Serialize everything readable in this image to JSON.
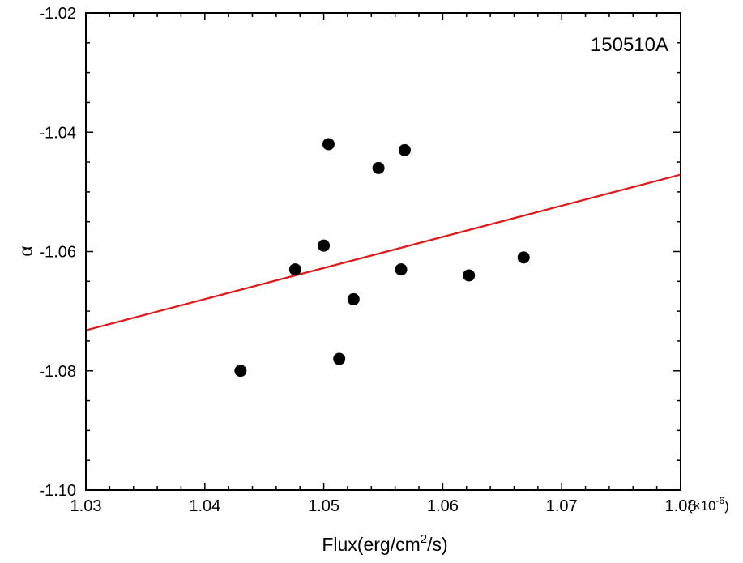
{
  "chart_data": {
    "type": "scatter",
    "title": "",
    "annotation": "150510A",
    "xlabel_main": "Flux(erg/cm",
    "xlabel_sup": "2",
    "xlabel_tail": "/s)",
    "ylabel": "α",
    "x_multiplier_prefix": "(×10",
    "x_multiplier_exp": "-6",
    "x_multiplier_suffix": ")",
    "xlim": [
      1.03,
      1.08
    ],
    "ylim": [
      -1.1,
      -1.02
    ],
    "x_ticks": [
      1.03,
      1.04,
      1.05,
      1.06,
      1.07,
      1.08
    ],
    "x_tick_labels": [
      "1.03",
      "1.04",
      "1.05",
      "1.06",
      "1.07",
      "1.08"
    ],
    "y_ticks": [
      -1.1,
      -1.08,
      -1.06,
      -1.04,
      -1.02
    ],
    "y_tick_labels": [
      "-1.10",
      "-1.08",
      "-1.06",
      "-1.04",
      "-1.02"
    ],
    "grid": false,
    "points": [
      {
        "x": 1.043,
        "y": -1.08
      },
      {
        "x": 1.0476,
        "y": -1.063
      },
      {
        "x": 1.05,
        "y": -1.059
      },
      {
        "x": 1.0504,
        "y": -1.042
      },
      {
        "x": 1.0513,
        "y": -1.078
      },
      {
        "x": 1.0525,
        "y": -1.068
      },
      {
        "x": 1.0546,
        "y": -1.046
      },
      {
        "x": 1.0565,
        "y": -1.063
      },
      {
        "x": 1.0568,
        "y": -1.043
      },
      {
        "x": 1.0622,
        "y": -1.064
      },
      {
        "x": 1.0668,
        "y": -1.061
      }
    ],
    "fit_line": {
      "x": [
        1.03,
        1.08
      ],
      "y": [
        -1.0732,
        -1.0471
      ]
    },
    "colors": {
      "points": "#000000",
      "fit_line": "#e0191c",
      "axes": "#000000"
    }
  }
}
